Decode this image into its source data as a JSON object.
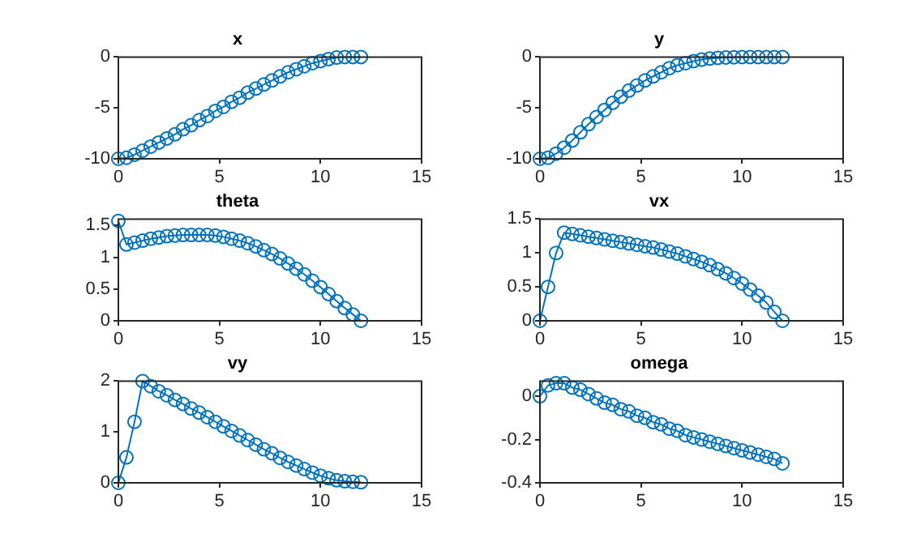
{
  "chart_data": [
    {
      "type": "line",
      "title": "x",
      "marker": "circle",
      "grid": false,
      "x": [
        0,
        0.4,
        0.8,
        1.2,
        1.6,
        2,
        2.4,
        2.8,
        3.2,
        3.6,
        4,
        4.4,
        4.8,
        5.2,
        5.6,
        6,
        6.4,
        6.8,
        7.2,
        7.6,
        8,
        8.4,
        8.8,
        9.2,
        9.6,
        10,
        10.4,
        10.8,
        11.2,
        11.6,
        12
      ],
      "series": [
        {
          "color": "#0072bd",
          "values": [
            -10,
            -9.9,
            -9.6,
            -9.2,
            -8.8,
            -8.4,
            -8.0,
            -7.6,
            -7.1,
            -6.7,
            -6.2,
            -5.8,
            -5.3,
            -4.9,
            -4.4,
            -4.0,
            -3.5,
            -3.1,
            -2.7,
            -2.3,
            -1.9,
            -1.5,
            -1.2,
            -0.9,
            -0.6,
            -0.4,
            -0.2,
            -0.05,
            0,
            0,
            0
          ]
        }
      ],
      "xlim": [
        0,
        15
      ],
      "xticks": [
        0,
        5,
        10,
        15
      ],
      "ylim": [
        -10,
        0
      ],
      "yticks": [
        -10,
        -5,
        0
      ]
    },
    {
      "type": "line",
      "title": "y",
      "marker": "circle",
      "grid": false,
      "x": [
        0,
        0.4,
        0.8,
        1.2,
        1.6,
        2,
        2.4,
        2.8,
        3.2,
        3.6,
        4,
        4.4,
        4.8,
        5.2,
        5.6,
        6,
        6.4,
        6.8,
        7.2,
        7.6,
        8,
        8.4,
        8.8,
        9.2,
        9.6,
        10,
        10.4,
        10.8,
        11.2,
        11.6,
        12
      ],
      "series": [
        {
          "color": "#0072bd",
          "values": [
            -10,
            -9.9,
            -9.5,
            -8.9,
            -8.2,
            -7.4,
            -6.6,
            -5.9,
            -5.2,
            -4.5,
            -3.9,
            -3.3,
            -2.8,
            -2.3,
            -1.9,
            -1.5,
            -1.1,
            -0.8,
            -0.6,
            -0.4,
            -0.25,
            -0.15,
            -0.08,
            -0.04,
            -0.02,
            0,
            0,
            0,
            0,
            0,
            0
          ]
        }
      ],
      "xlim": [
        0,
        15
      ],
      "xticks": [
        0,
        5,
        10,
        15
      ],
      "ylim": [
        -10,
        0
      ],
      "yticks": [
        -10,
        -5,
        0
      ]
    },
    {
      "type": "line",
      "title": "theta",
      "marker": "circle",
      "grid": false,
      "x": [
        0,
        0.4,
        0.8,
        1.2,
        1.6,
        2,
        2.4,
        2.8,
        3.2,
        3.6,
        4,
        4.4,
        4.8,
        5.2,
        5.6,
        6,
        6.4,
        6.8,
        7.2,
        7.6,
        8,
        8.4,
        8.8,
        9.2,
        9.6,
        10,
        10.4,
        10.8,
        11.2,
        11.6,
        12
      ],
      "series": [
        {
          "color": "#0072bd",
          "values": [
            1.57,
            1.2,
            1.23,
            1.26,
            1.29,
            1.31,
            1.33,
            1.34,
            1.35,
            1.35,
            1.35,
            1.35,
            1.34,
            1.32,
            1.29,
            1.26,
            1.22,
            1.17,
            1.11,
            1.05,
            0.98,
            0.9,
            0.82,
            0.73,
            0.63,
            0.53,
            0.42,
            0.31,
            0.2,
            0.1,
            0
          ]
        }
      ],
      "xlim": [
        0,
        15
      ],
      "xticks": [
        0,
        5,
        10,
        15
      ],
      "ylim": [
        0,
        1.6
      ],
      "yticks": [
        0,
        0.5,
        1,
        1.5
      ]
    },
    {
      "type": "line",
      "title": "vx",
      "marker": "circle",
      "grid": false,
      "x": [
        0,
        0.4,
        0.8,
        1.2,
        1.6,
        2,
        2.4,
        2.8,
        3.2,
        3.6,
        4,
        4.4,
        4.8,
        5.2,
        5.6,
        6,
        6.4,
        6.8,
        7.2,
        7.6,
        8,
        8.4,
        8.8,
        9.2,
        9.6,
        10,
        10.4,
        10.8,
        11.2,
        11.6,
        12
      ],
      "series": [
        {
          "color": "#0072bd",
          "values": [
            0,
            0.5,
            1.0,
            1.3,
            1.28,
            1.26,
            1.24,
            1.22,
            1.2,
            1.18,
            1.16,
            1.14,
            1.12,
            1.1,
            1.08,
            1.05,
            1.02,
            0.99,
            0.95,
            0.91,
            0.87,
            0.82,
            0.76,
            0.7,
            0.63,
            0.55,
            0.46,
            0.37,
            0.27,
            0.13,
            0
          ]
        }
      ],
      "xlim": [
        0,
        15
      ],
      "xticks": [
        0,
        5,
        10,
        15
      ],
      "ylim": [
        0,
        1.5
      ],
      "yticks": [
        0,
        0.5,
        1,
        1.5
      ]
    },
    {
      "type": "line",
      "title": "vy",
      "marker": "circle",
      "grid": false,
      "x": [
        0,
        0.4,
        0.8,
        1.2,
        1.6,
        2,
        2.4,
        2.8,
        3.2,
        3.6,
        4,
        4.4,
        4.8,
        5.2,
        5.6,
        6,
        6.4,
        6.8,
        7.2,
        7.6,
        8,
        8.4,
        8.8,
        9.2,
        9.6,
        10,
        10.4,
        10.8,
        11.2,
        11.6,
        12
      ],
      "series": [
        {
          "color": "#0072bd",
          "values": [
            0,
            0.5,
            1.2,
            2.0,
            1.9,
            1.8,
            1.72,
            1.63,
            1.55,
            1.46,
            1.38,
            1.29,
            1.2,
            1.11,
            1.02,
            0.93,
            0.84,
            0.75,
            0.66,
            0.58,
            0.49,
            0.41,
            0.34,
            0.27,
            0.2,
            0.14,
            0.09,
            0.05,
            0.03,
            0.02,
            0.01
          ]
        }
      ],
      "xlim": [
        0,
        15
      ],
      "xticks": [
        0,
        5,
        10,
        15
      ],
      "ylim": [
        0,
        2
      ],
      "yticks": [
        0,
        1,
        2
      ]
    },
    {
      "type": "line",
      "title": "omega",
      "marker": "circle",
      "grid": false,
      "x": [
        0,
        0.4,
        0.8,
        1.2,
        1.6,
        2,
        2.4,
        2.8,
        3.2,
        3.6,
        4,
        4.4,
        4.8,
        5.2,
        5.6,
        6,
        6.4,
        6.8,
        7.2,
        7.6,
        8,
        8.4,
        8.8,
        9.2,
        9.6,
        10,
        10.4,
        10.8,
        11.2,
        11.6,
        12
      ],
      "series": [
        {
          "color": "#0072bd",
          "values": [
            0,
            0.05,
            0.06,
            0.06,
            0.04,
            0.03,
            0.01,
            -0.01,
            -0.03,
            -0.04,
            -0.06,
            -0.07,
            -0.09,
            -0.1,
            -0.12,
            -0.13,
            -0.15,
            -0.16,
            -0.18,
            -0.19,
            -0.2,
            -0.21,
            -0.22,
            -0.23,
            -0.24,
            -0.25,
            -0.26,
            -0.27,
            -0.28,
            -0.29,
            -0.31
          ]
        }
      ],
      "xlim": [
        0,
        15
      ],
      "xticks": [
        0,
        5,
        10,
        15
      ],
      "ylim": [
        -0.4,
        0.07
      ],
      "yticks": [
        -0.4,
        -0.2,
        0
      ]
    }
  ]
}
